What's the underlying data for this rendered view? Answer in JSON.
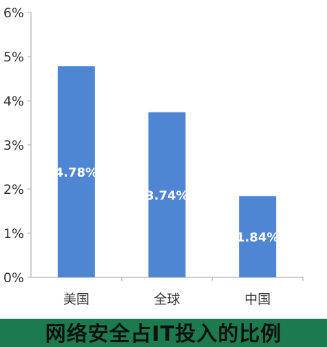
{
  "chart_data": {
    "type": "bar",
    "title": "网络安全占IT投入的比例",
    "categories": [
      "美国",
      "全球",
      "中国"
    ],
    "values": [
      4.78,
      3.74,
      1.84
    ],
    "value_labels": [
      "4.78%",
      "3.74%",
      "1.84%"
    ],
    "ylim": [
      0,
      6
    ],
    "yticks": [
      0,
      1,
      2,
      3,
      4,
      5,
      6
    ],
    "ytick_labels": [
      "0%",
      "1%",
      "2%",
      "3%",
      "4%",
      "5%",
      "6%"
    ],
    "xlabel": "",
    "ylabel": "",
    "grid": false,
    "legend": "none"
  },
  "colors": {
    "bar": "#4f86d4",
    "axis": "#bfbfbf",
    "tick_text": "#333333",
    "value_text": "#ffffff",
    "caption_band": "#1b7a4e"
  }
}
